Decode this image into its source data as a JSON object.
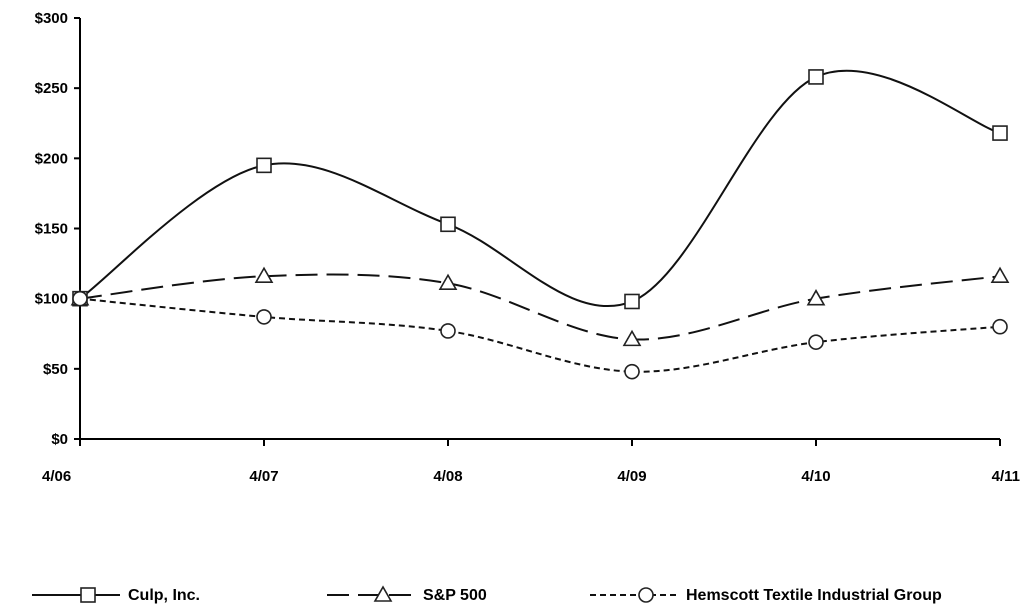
{
  "chart_data": {
    "type": "line",
    "title": "",
    "xlabel": "",
    "ylabel": "",
    "categories": [
      "4/06",
      "4/07",
      "4/08",
      "4/09",
      "4/10",
      "4/11"
    ],
    "y_ticks": [
      "$0",
      "$50",
      "$100",
      "$150",
      "$200",
      "$250",
      "$300"
    ],
    "ylim": [
      0,
      300
    ],
    "grid": false,
    "legend_position": "bottom",
    "series": [
      {
        "name": "Culp, Inc.",
        "values": [
          100,
          195,
          153,
          98,
          258,
          218
        ],
        "marker": "square",
        "dash": "solid",
        "smooth": true
      },
      {
        "name": "S&P 500",
        "values": [
          100,
          116,
          111,
          71,
          100,
          116
        ],
        "marker": "triangle",
        "dash": "dashed",
        "smooth": true
      },
      {
        "name": "Hemscott Textile Industrial Group",
        "values": [
          100,
          87,
          77,
          48,
          69,
          80
        ],
        "marker": "circle",
        "dash": "dotted",
        "smooth": true
      }
    ]
  }
}
